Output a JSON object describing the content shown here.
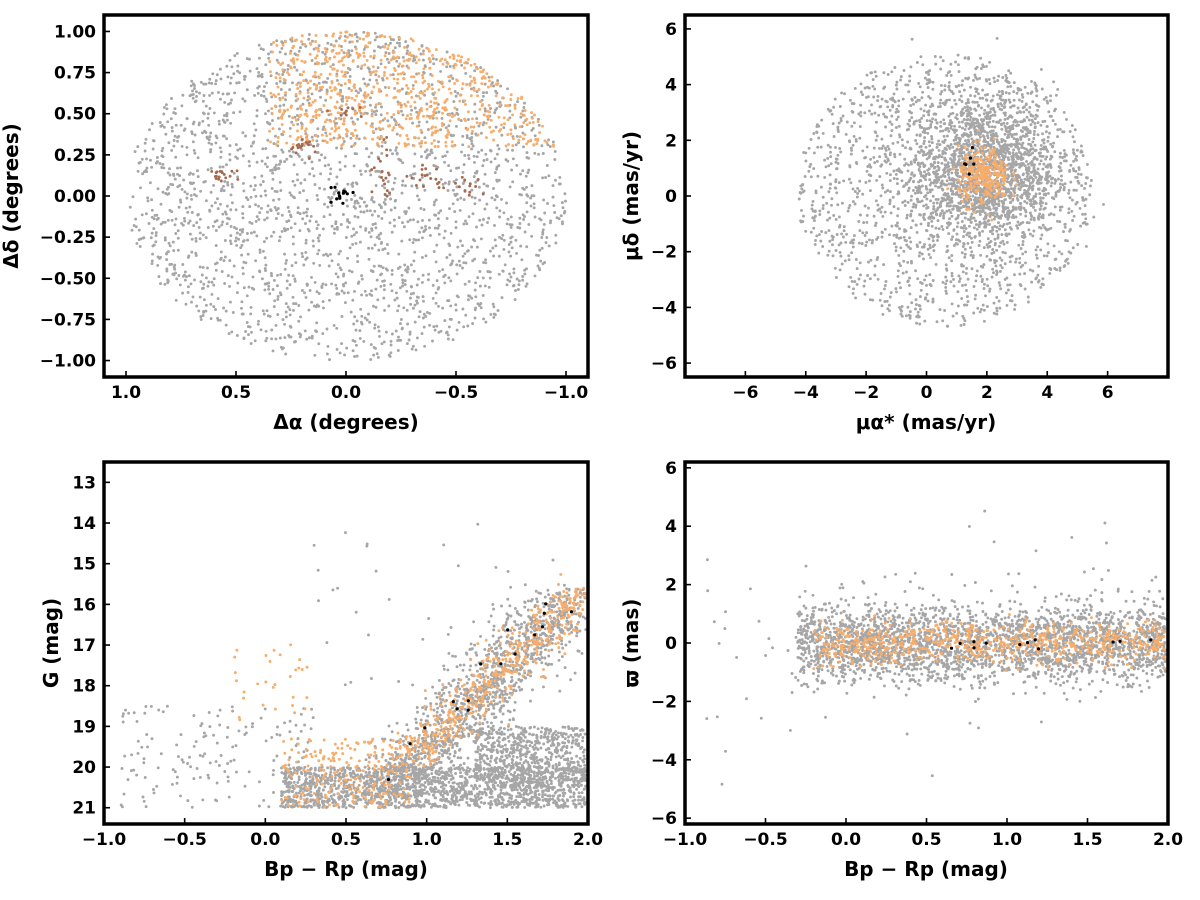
{
  "colors": {
    "field": "#a6a6a6",
    "members": "#f7ad6b",
    "groups": "#a66b4f",
    "core": "#000000"
  },
  "chart_data": [
    {
      "id": "sky",
      "type": "scatter",
      "xlabel": "Δα (degrees)",
      "ylabel": "Δδ (degrees)",
      "xlim": [
        1.1,
        -1.1
      ],
      "ylim": [
        -1.1,
        1.1
      ],
      "xticks": [
        {
          "v": 1.0,
          "t": "1.0"
        },
        {
          "v": 0.5,
          "t": "0.5"
        },
        {
          "v": 0.0,
          "t": "0.0"
        },
        {
          "v": -0.5,
          "t": "−0.5"
        },
        {
          "v": -1.0,
          "t": "−1.0"
        }
      ],
      "yticks": [
        {
          "v": 1.0,
          "t": "1.00"
        },
        {
          "v": 0.75,
          "t": "0.75"
        },
        {
          "v": 0.5,
          "t": "0.50"
        },
        {
          "v": 0.25,
          "t": "0.25"
        },
        {
          "v": 0.0,
          "t": "0.00"
        },
        {
          "v": -0.25,
          "t": "−0.25"
        },
        {
          "v": -0.5,
          "t": "−0.50"
        },
        {
          "v": -0.75,
          "t": "−0.75"
        },
        {
          "v": -1.0,
          "t": "−1.00"
        }
      ],
      "series": [
        {
          "color": "#a6a6a6",
          "dist": "disk",
          "n": 2200,
          "cx": 0,
          "cy": 0,
          "r": 1.0
        },
        {
          "color": "#f7ad6b",
          "dist": "cap",
          "n": 700,
          "ymin": 0.3,
          "xmax": 0.35
        },
        {
          "color": "#a66b4f",
          "dist": "gauss",
          "n": 18,
          "cx": 0.57,
          "cy": 0.12,
          "sx": 0.04,
          "sy": 0.02
        },
        {
          "color": "#a66b4f",
          "dist": "gauss",
          "n": 18,
          "cx": 0.2,
          "cy": 0.3,
          "sx": 0.04,
          "sy": 0.03
        },
        {
          "color": "#a66b4f",
          "dist": "gauss",
          "n": 20,
          "cx": -0.17,
          "cy": 0.15,
          "sx": 0.03,
          "sy": 0.08
        },
        {
          "color": "#a66b4f",
          "dist": "gauss",
          "n": 18,
          "cx": -0.38,
          "cy": 0.12,
          "sx": 0.05,
          "sy": 0.05
        },
        {
          "color": "#a66b4f",
          "dist": "gauss",
          "n": 12,
          "cx": -0.53,
          "cy": 0.05,
          "sx": 0.03,
          "sy": 0.04
        },
        {
          "color": "#a66b4f",
          "dist": "gauss",
          "n": 10,
          "cx": 0.0,
          "cy": 0.52,
          "sx": 0.04,
          "sy": 0.02
        },
        {
          "color": "#000000",
          "dist": "gauss",
          "n": 14,
          "cx": 0.01,
          "cy": 0.0,
          "sx": 0.03,
          "sy": 0.03
        }
      ]
    },
    {
      "id": "pm",
      "type": "scatter",
      "xlabel": "μα* (mas/yr)",
      "ylabel": "μδ (mas/yr)",
      "xlim": [
        -8,
        8
      ],
      "ylim": [
        -6.5,
        6.5
      ],
      "xticks": [
        {
          "v": -6,
          "t": "−6"
        },
        {
          "v": -4,
          "t": "−4"
        },
        {
          "v": -2,
          "t": "−2"
        },
        {
          "v": 0,
          "t": "0"
        },
        {
          "v": 2,
          "t": "2"
        },
        {
          "v": 4,
          "t": "4"
        },
        {
          "v": 6,
          "t": "6"
        }
      ],
      "yticks": [
        {
          "v": 6,
          "t": "6"
        },
        {
          "v": 4,
          "t": "4"
        },
        {
          "v": 2,
          "t": "2"
        },
        {
          "v": 0,
          "t": "0"
        },
        {
          "v": -2,
          "t": "−2"
        },
        {
          "v": -4,
          "t": "−4"
        },
        {
          "v": -6,
          "t": "−6"
        }
      ],
      "series": [
        {
          "color": "#a6a6a6",
          "dist": "disk",
          "n": 1400,
          "cx": 0.6,
          "cy": 0.2,
          "r": 4.9
        },
        {
          "color": "#a6a6a6",
          "dist": "gauss",
          "n": 1800,
          "cx": 1.9,
          "cy": 1.0,
          "sx": 1.2,
          "sy": 1.3
        },
        {
          "color": "#f7ad6b",
          "dist": "gauss",
          "n": 280,
          "cx": 1.9,
          "cy": 0.7,
          "sx": 0.42,
          "sy": 0.5
        },
        {
          "color": "#000000",
          "dist": "gauss",
          "n": 6,
          "cx": 1.6,
          "cy": 1.2,
          "sx": 0.25,
          "sy": 0.3
        }
      ]
    },
    {
      "id": "cmd",
      "type": "scatter",
      "xlabel": "Bp − Rp (mag)",
      "ylabel": "G (mag)",
      "xlim": [
        -1.0,
        2.0
      ],
      "ylim": [
        21.4,
        12.5
      ],
      "xticks": [
        {
          "v": -1.0,
          "t": "−1.0"
        },
        {
          "v": -0.5,
          "t": "−0.5"
        },
        {
          "v": 0.0,
          "t": "0.0"
        },
        {
          "v": 0.5,
          "t": "0.5"
        },
        {
          "v": 1.0,
          "t": "1.0"
        },
        {
          "v": 1.5,
          "t": "1.5"
        },
        {
          "v": 2.0,
          "t": "2.0"
        }
      ],
      "yticks": [
        {
          "v": 21,
          "t": "21"
        },
        {
          "v": 20,
          "t": "20"
        },
        {
          "v": 19,
          "t": "19"
        },
        {
          "v": 18,
          "t": "18"
        },
        {
          "v": 17,
          "t": "17"
        },
        {
          "v": 16,
          "t": "16"
        },
        {
          "v": 15,
          "t": "15"
        },
        {
          "v": 14,
          "t": "14"
        },
        {
          "v": 13,
          "t": "13"
        }
      ],
      "series": [
        {
          "color": "#a6a6a6",
          "dist": "band",
          "n": 1600,
          "x0": 0.1,
          "x1": 2.0,
          "y0": 20.0,
          "y1": 21.0
        },
        {
          "color": "#a6a6a6",
          "dist": "band",
          "n": 600,
          "x0": 1.3,
          "x1": 2.0,
          "y0": 19.0,
          "y1": 20.4
        },
        {
          "color": "#a6a6a6",
          "dist": "seq",
          "n": 1300,
          "xa": 0.8,
          "ya": 20.5,
          "xb": 1.9,
          "yb": 15.8,
          "sx": 0.14,
          "sy": 0.25
        },
        {
          "color": "#a6a6a6",
          "dist": "band",
          "n": 160,
          "x0": -0.9,
          "x1": 0.3,
          "y0": 18.5,
          "y1": 21.0
        },
        {
          "color": "#a6a6a6",
          "dist": "band",
          "n": 40,
          "x0": 0.3,
          "x1": 1.9,
          "y0": 14.0,
          "y1": 18.0
        },
        {
          "color": "#f7ad6b",
          "dist": "band",
          "n": 220,
          "x0": 0.1,
          "x1": 0.9,
          "y0": 19.3,
          "y1": 21.0
        },
        {
          "color": "#f7ad6b",
          "dist": "seq",
          "n": 480,
          "xa": 0.9,
          "ya": 19.8,
          "xb": 1.95,
          "yb": 15.7,
          "sx": 0.09,
          "sy": 0.2
        },
        {
          "color": "#f7ad6b",
          "dist": "band",
          "n": 30,
          "x0": -0.2,
          "x1": 0.3,
          "y0": 16.8,
          "y1": 19.0
        },
        {
          "color": "#000000",
          "dist": "seq",
          "n": 16,
          "xa": 0.75,
          "ya": 20.5,
          "xb": 1.9,
          "yb": 15.8,
          "sx": 0.08,
          "sy": 0.2
        }
      ]
    },
    {
      "id": "plx",
      "type": "scatter",
      "xlabel": "Bp − Rp (mag)",
      "ylabel": "ϖ (mas)",
      "xlim": [
        -1.0,
        2.0
      ],
      "ylim": [
        -6.2,
        6.2
      ],
      "xticks": [
        {
          "v": -1.0,
          "t": "−1.0"
        },
        {
          "v": -0.5,
          "t": "−0.5"
        },
        {
          "v": 0.0,
          "t": "0.0"
        },
        {
          "v": 0.5,
          "t": "0.5"
        },
        {
          "v": 1.0,
          "t": "1.0"
        },
        {
          "v": 1.5,
          "t": "1.5"
        },
        {
          "v": 2.0,
          "t": "2.0"
        }
      ],
      "yticks": [
        {
          "v": 6,
          "t": "6"
        },
        {
          "v": 4,
          "t": "4"
        },
        {
          "v": 2,
          "t": "2"
        },
        {
          "v": 0,
          "t": "0"
        },
        {
          "v": -2,
          "t": "−2"
        },
        {
          "v": -4,
          "t": "−4"
        },
        {
          "v": -6,
          "t": "−6"
        }
      ],
      "series": [
        {
          "color": "#a6a6a6",
          "dist": "strip",
          "n": 2600,
          "x0": -0.3,
          "x1": 2.0,
          "cy": 0.0,
          "sy": 0.65
        },
        {
          "color": "#a6a6a6",
          "dist": "strip",
          "n": 140,
          "x0": -0.9,
          "x1": 2.0,
          "cy": 0.0,
          "sy": 1.6
        },
        {
          "color": "#f7ad6b",
          "dist": "strip",
          "n": 700,
          "x0": -0.2,
          "x1": 2.0,
          "cy": 0.0,
          "sy": 0.35
        },
        {
          "color": "#000000",
          "dist": "strip",
          "n": 12,
          "x0": 0.6,
          "x1": 1.9,
          "cy": 0.0,
          "sy": 0.15
        }
      ]
    }
  ]
}
